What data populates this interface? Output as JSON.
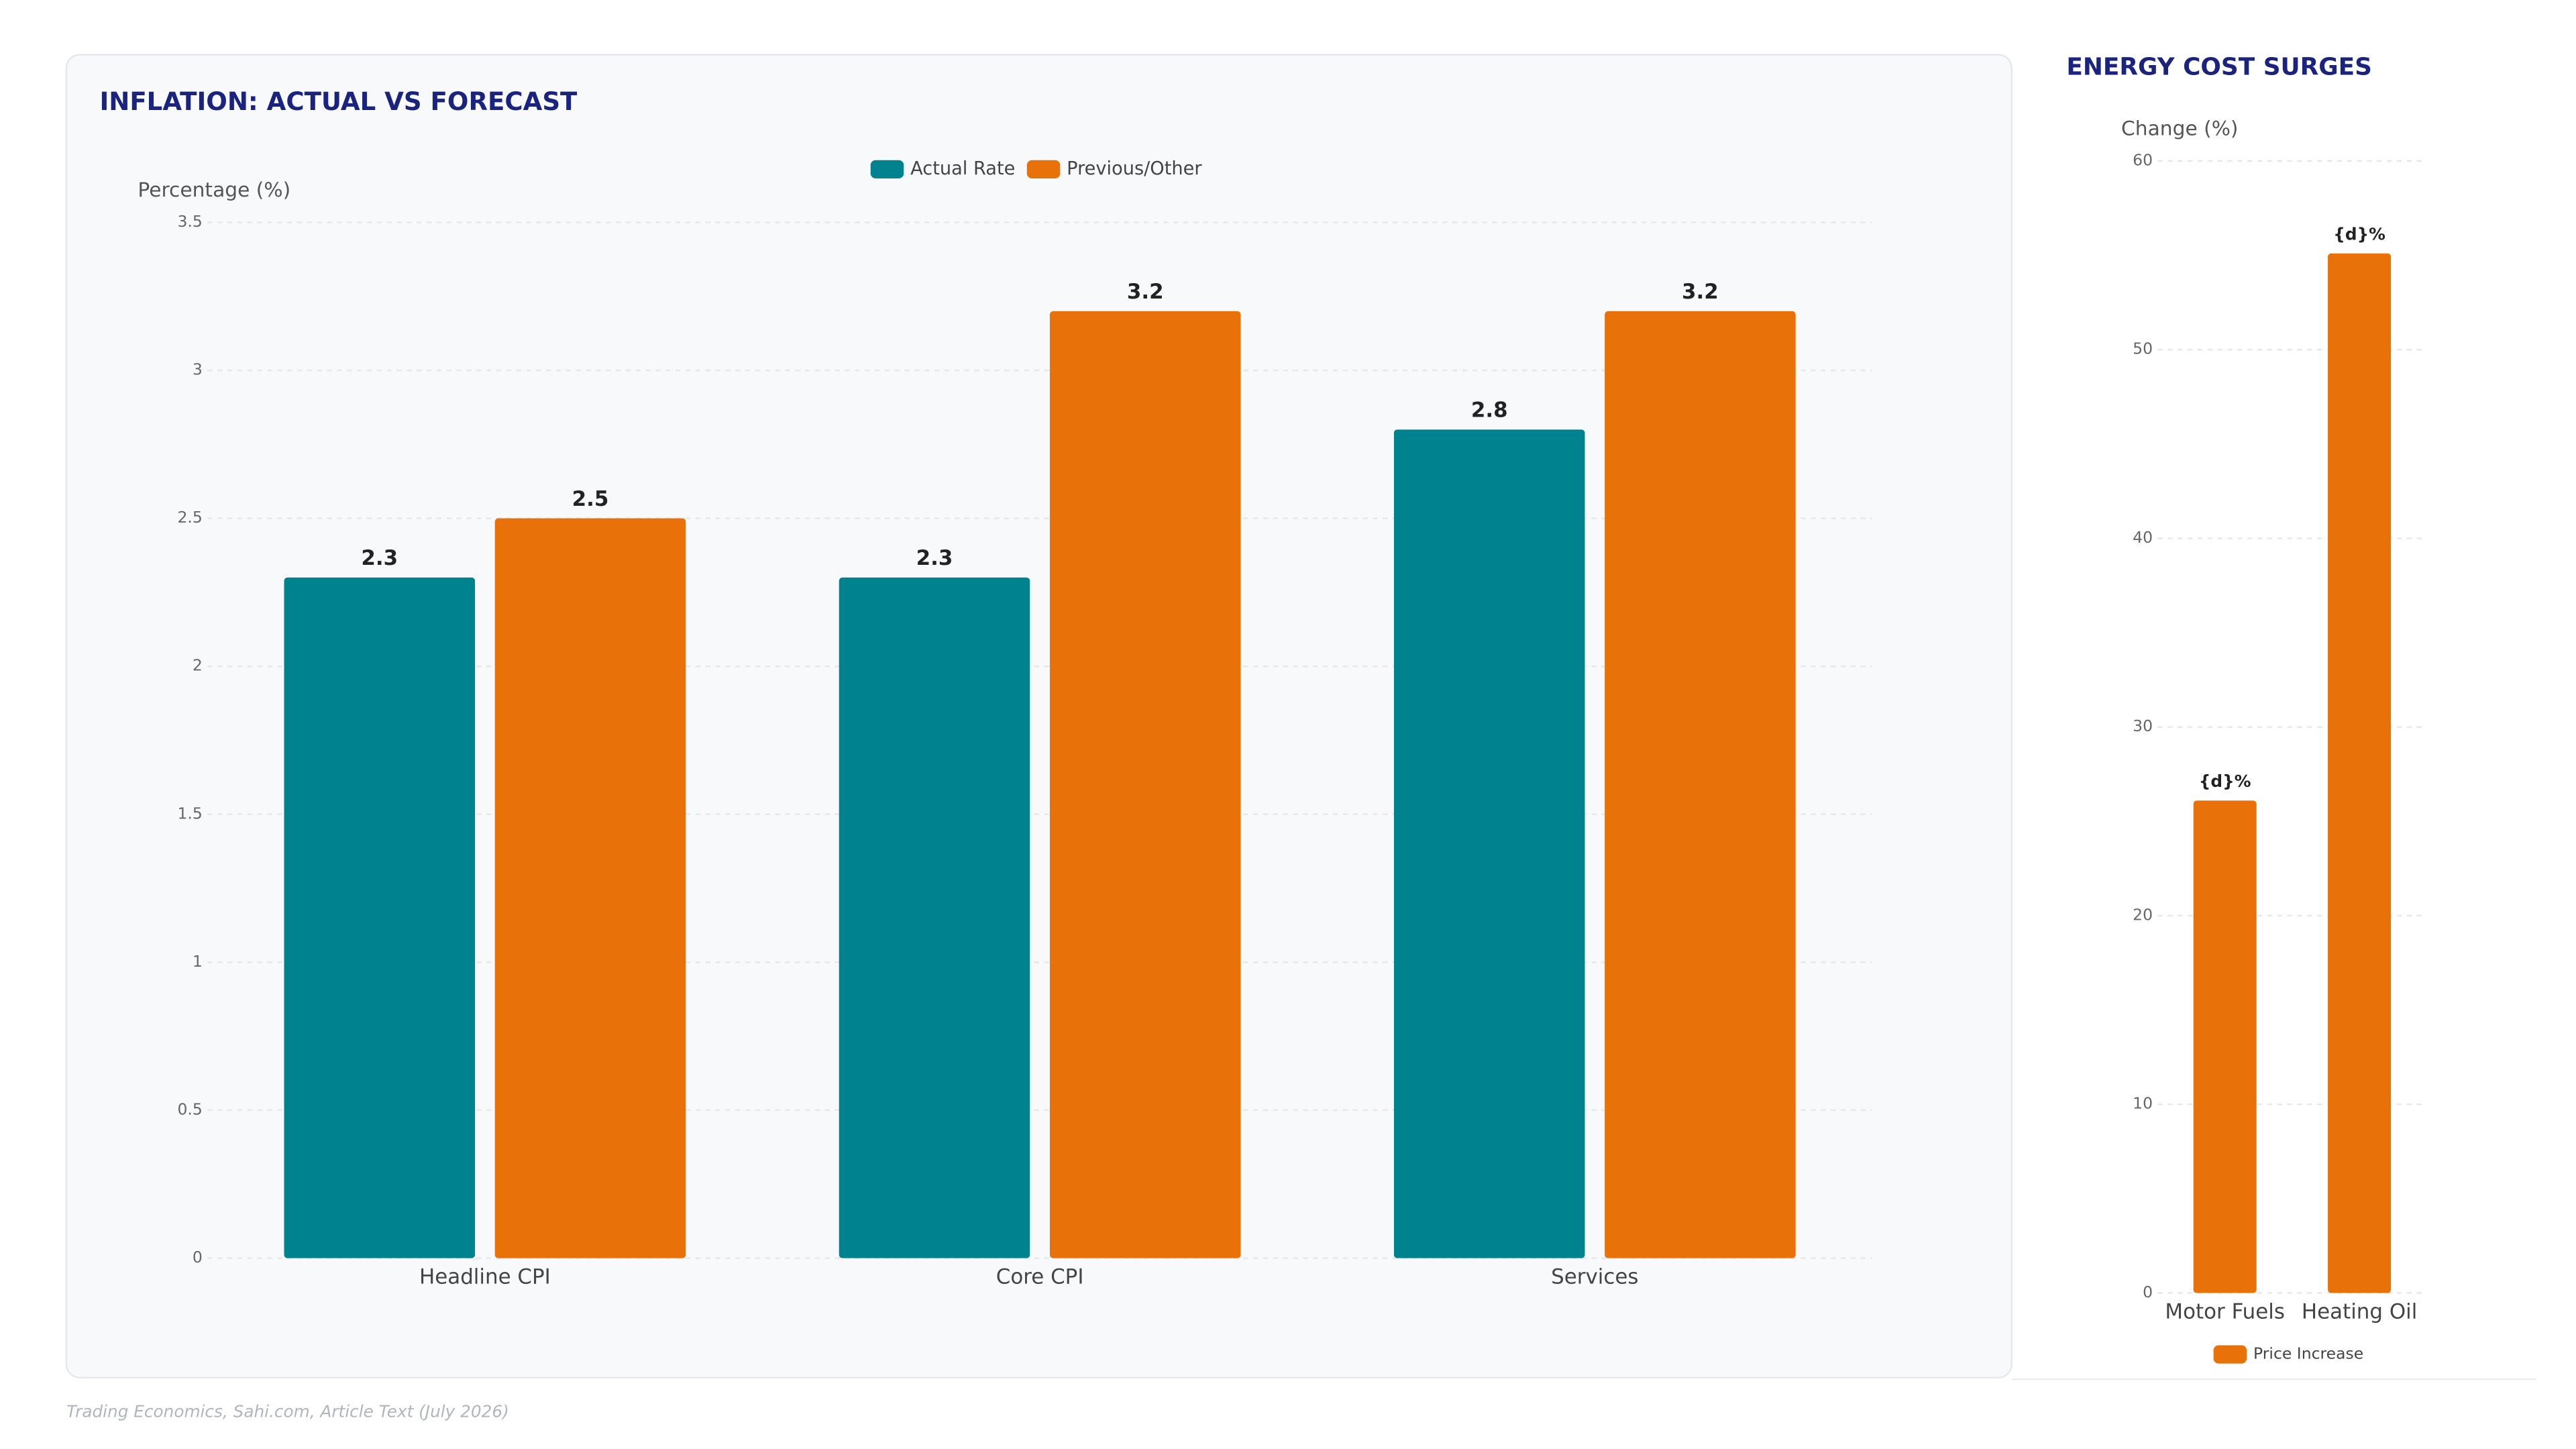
{
  "chart_data": [
    {
      "type": "bar",
      "title": "INFLATION: ACTUAL VS FORECAST",
      "y_label": "Percentage (%)",
      "categories": [
        "Headline CPI",
        "Core CPI",
        "Services"
      ],
      "series": [
        {
          "name": "Actual Rate",
          "color": "#00838f",
          "values": [
            2.3,
            2.3,
            2.8
          ]
        },
        {
          "name": "Previous/Other",
          "color": "#e8710a",
          "values": [
            2.5,
            3.2,
            3.2
          ]
        }
      ],
      "ylim": [
        0,
        3.5
      ],
      "yticks": [
        0,
        0.5,
        1,
        1.5,
        2,
        2.5,
        3,
        3.5
      ],
      "grid": true,
      "legend": "top"
    },
    {
      "type": "bar",
      "title": "ENERGY COST SURGES",
      "y_label": "Change (%)",
      "categories": [
        "Motor Fuels",
        "Heating Oil"
      ],
      "series": [
        {
          "name": "Price Increase",
          "color": "#e8710a",
          "values": [
            26.1,
            55.1
          ],
          "value_labels": [
            "{d}%",
            "{d}%"
          ]
        }
      ],
      "ylim": [
        0,
        60
      ],
      "yticks": [
        0,
        10,
        20,
        30,
        40,
        50,
        60
      ],
      "grid": true,
      "legend": "bottom"
    }
  ],
  "source": "Trading Economics, Sahi.com, Article Text (July 2026)"
}
